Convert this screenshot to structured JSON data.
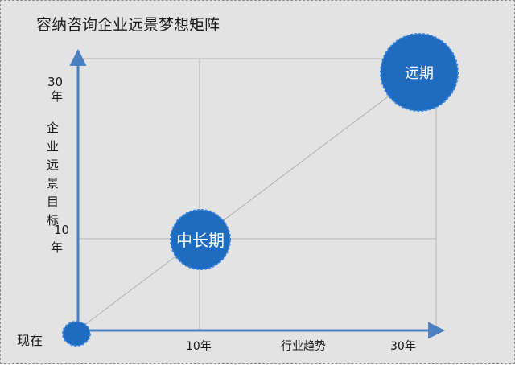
{
  "title": "容纳咨询企业远景梦想矩阵",
  "y_axis": {
    "label": "企业远景目标",
    "top_value": "30",
    "mid_value": "10",
    "unit": "年"
  },
  "x_axis": {
    "label": "行业趋势",
    "ticks": [
      "10年",
      "30年"
    ]
  },
  "origin_label": "现在",
  "nodes": {
    "mid": "中长期",
    "far": "远期"
  },
  "colors": {
    "axis": "#4a7fc0",
    "node": "#1f6bbf",
    "grid": "#b4b4b4",
    "background": "#e3e3e3"
  }
}
